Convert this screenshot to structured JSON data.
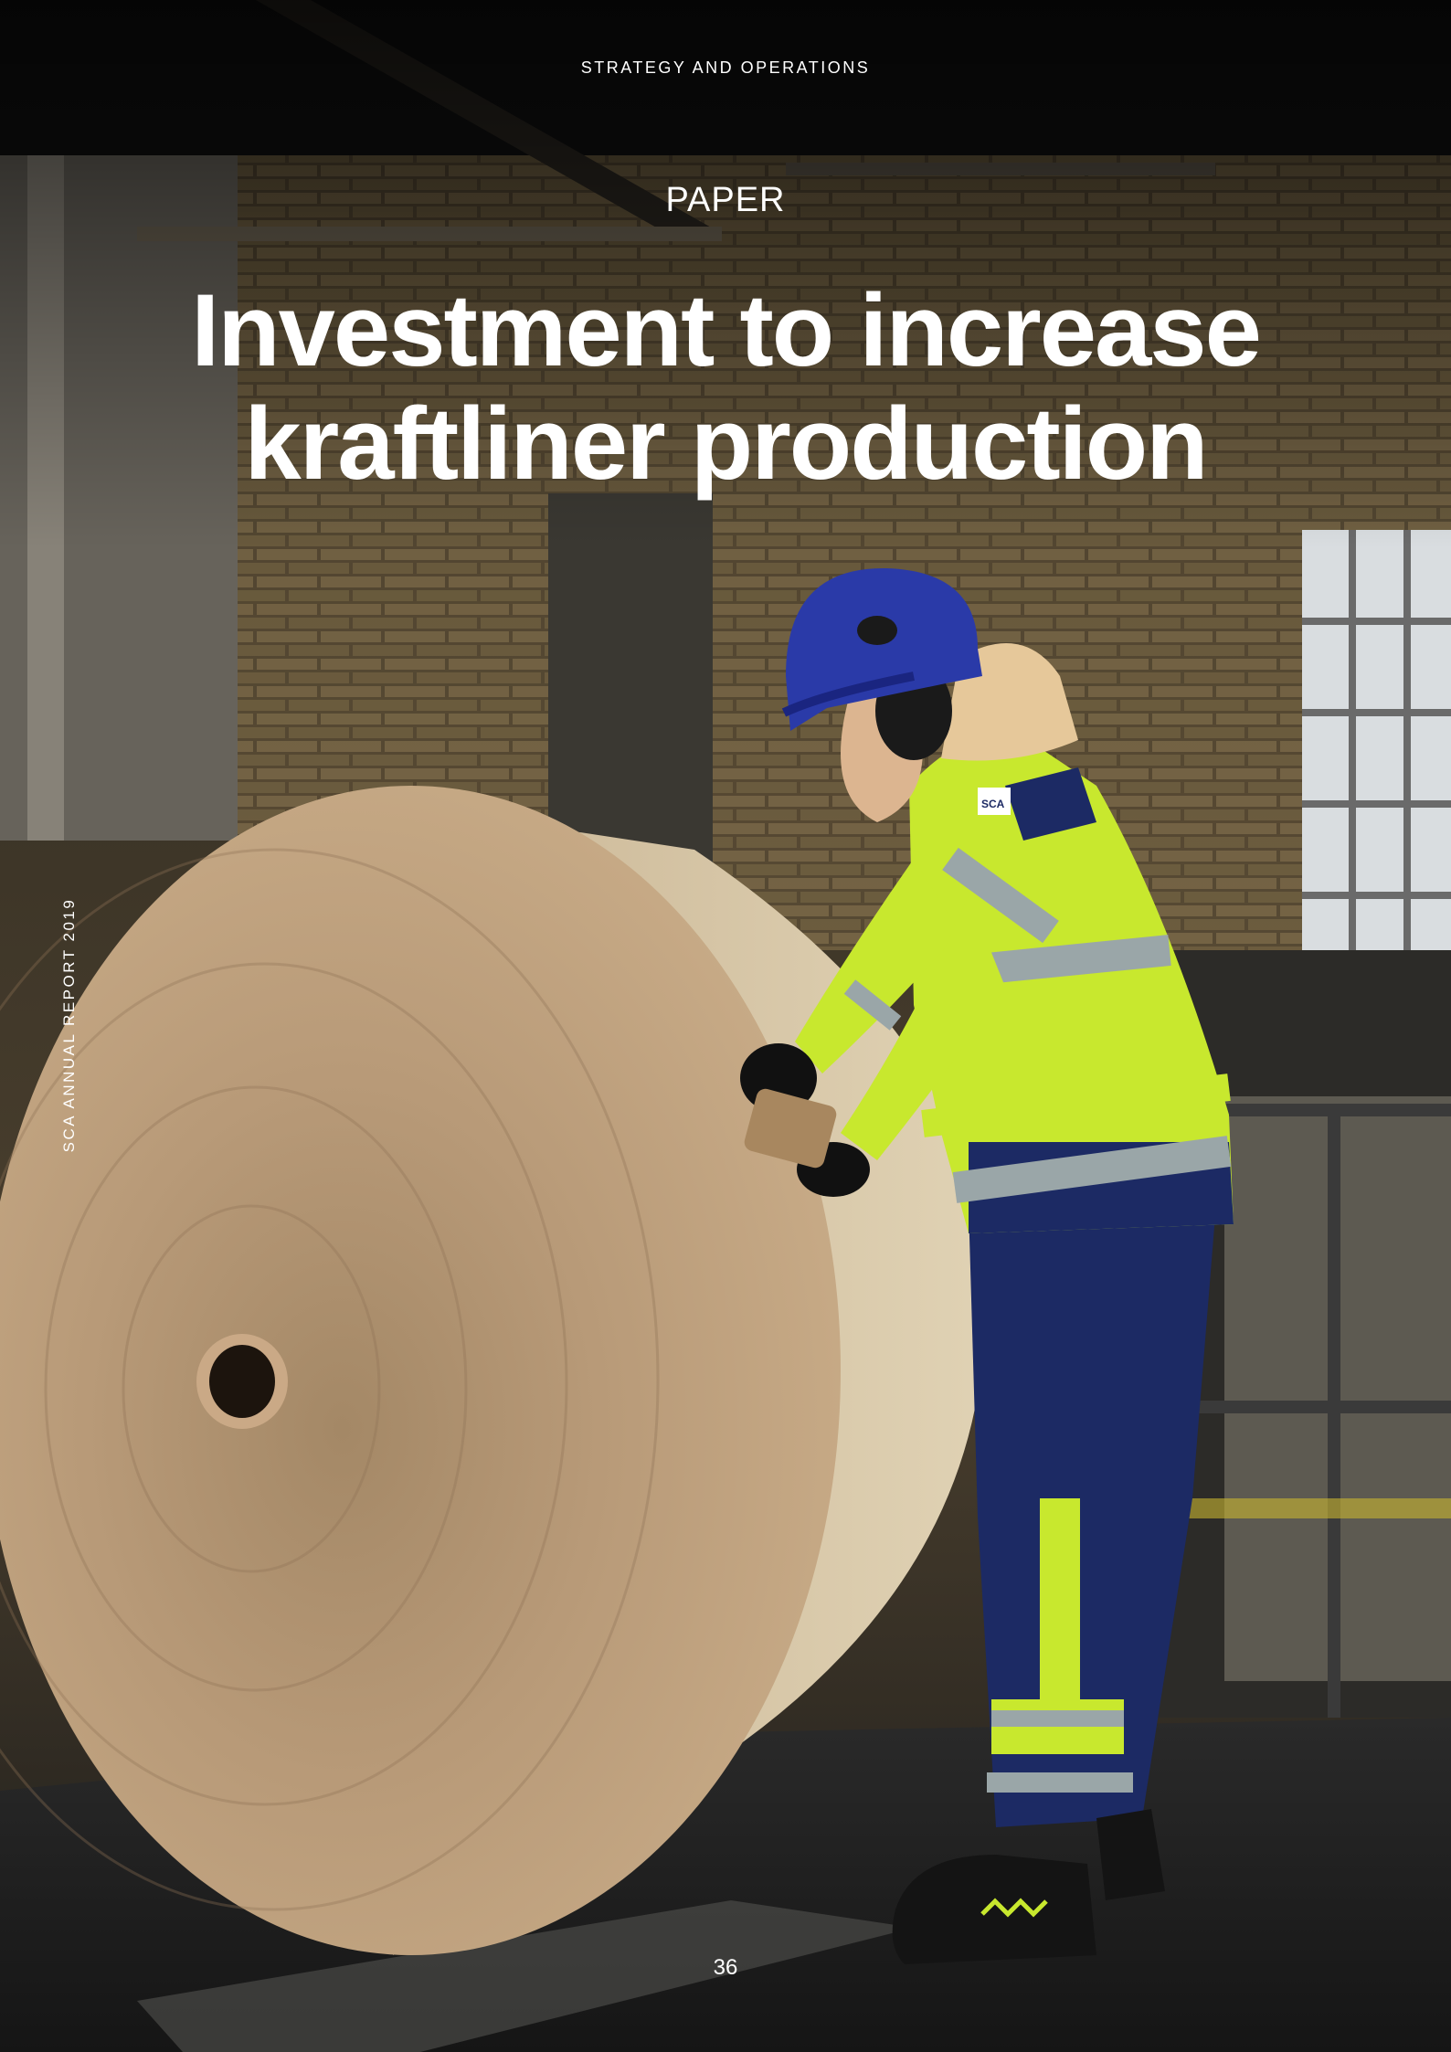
{
  "header": {
    "section": "STRATEGY AND OPERATIONS",
    "kicker": "PAPER",
    "headline_line1": "Investment to increase",
    "headline_line2": "kraftliner production"
  },
  "sidebar": {
    "report": "SCA ANNUAL REPORT 2019"
  },
  "footer": {
    "page_number": "36"
  },
  "photo": {
    "logo_text": "SCA",
    "colors": {
      "paper_roll": "#b39676",
      "hi_vis_yellow": "#c8e82e",
      "navy_workwear": "#1c2a64",
      "helmet_blue": "#2a3aa8",
      "brick_wall": "#6b5a3e"
    }
  }
}
